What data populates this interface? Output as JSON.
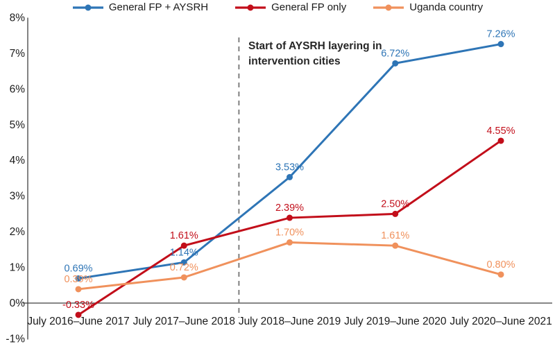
{
  "annotation": {
    "line1": "Start of AYSRH layering in",
    "line2": "intervention cities"
  },
  "chart_data": {
    "type": "line",
    "title": "",
    "xlabel": "",
    "ylabel": "",
    "categories": [
      "July 2016–June 2017",
      "July 2017–June 2018",
      "July 2018–June 2019",
      "July 2019–June 2020",
      "July 2020–June 2021"
    ],
    "series": [
      {
        "name": "General FP + AYSRH",
        "color": "#2E75B6",
        "values": [
          0.69,
          1.14,
          3.53,
          6.72,
          7.26
        ],
        "labels": [
          "0.69%",
          "1.14%",
          "3.53%",
          "6.72%",
          "7.26%"
        ]
      },
      {
        "name": "General FP only",
        "color": "#C20E1A",
        "values": [
          -0.33,
          1.61,
          2.39,
          2.5,
          4.55
        ],
        "labels": [
          "-0.33%",
          "1.61%",
          "2.39%",
          "2.50%",
          "4.55%"
        ]
      },
      {
        "name": "Uganda country",
        "color": "#F0915C",
        "values": [
          0.39,
          0.72,
          1.7,
          1.61,
          0.8
        ],
        "labels": [
          "0.39%",
          "0.72%",
          "1.70%",
          "1.61%",
          "0.80%"
        ]
      }
    ],
    "y_axis": {
      "min": -1,
      "max": 8,
      "tick_values": [
        8,
        7,
        6,
        5,
        4,
        3,
        2,
        1,
        0,
        -1
      ],
      "tick_labels": [
        "8%",
        "7%",
        "6%",
        "5%",
        "4%",
        "3%",
        "2%",
        "1%",
        "0%",
        "-1%"
      ]
    },
    "annotation": "Start of AYSRH layering in intervention cities",
    "vline_after_category_index": 1,
    "grid": false,
    "legend_position": "top"
  }
}
